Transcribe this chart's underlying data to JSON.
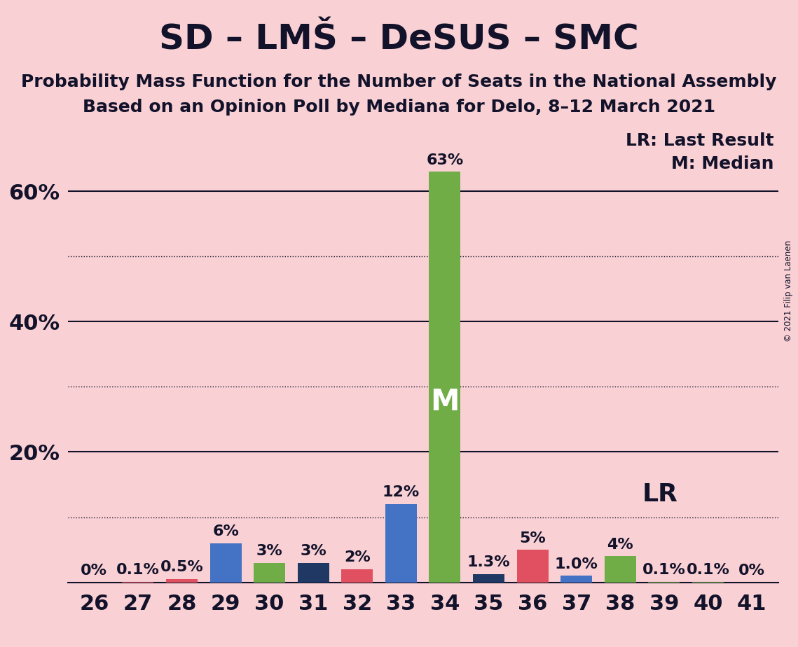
{
  "title": "SD – LMŠ – DeSUS – SMC",
  "subtitle1": "Probability Mass Function for the Number of Seats in the National Assembly",
  "subtitle2": "Based on an Opinion Poll by Mediana for Delo, 8–12 March 2021",
  "copyright": "© 2021 Filip van Laenen",
  "seats": [
    26,
    27,
    28,
    29,
    30,
    31,
    32,
    33,
    34,
    35,
    36,
    37,
    38,
    39,
    40,
    41
  ],
  "values": [
    0.0,
    0.1,
    0.5,
    6.0,
    3.0,
    3.0,
    2.0,
    12.0,
    63.0,
    1.3,
    5.0,
    1.0,
    4.0,
    0.1,
    0.1,
    0.0
  ],
  "labels": [
    "0%",
    "0.1%",
    "0.5%",
    "6%",
    "3%",
    "3%",
    "2%",
    "12%",
    "63%",
    "1.3%",
    "5%",
    "1.0%",
    "4%",
    "0.1%",
    "0.1%",
    "0%"
  ],
  "bar_colors": [
    "#e05060",
    "#e05060",
    "#e05060",
    "#4472c4",
    "#70ad47",
    "#1f3864",
    "#e05060",
    "#4472c4",
    "#70ad47",
    "#1f3864",
    "#e05060",
    "#4472c4",
    "#70ad47",
    "#70ad47",
    "#70ad47",
    "#e05060"
  ],
  "median_seat": 34,
  "lr_seat": 37,
  "background_color": "#f9d0d4",
  "ylim_max": 70,
  "solid_lines": [
    20,
    40,
    60
  ],
  "dotted_lines": [
    10,
    30,
    50
  ],
  "title_fontsize": 36,
  "subtitle_fontsize": 18,
  "label_fontsize": 16,
  "tick_fontsize": 22,
  "legend_fontsize": 18,
  "lr_label": "LR",
  "m_label": "M",
  "legend_lr": "LR: Last Result",
  "legend_m": "M: Median"
}
